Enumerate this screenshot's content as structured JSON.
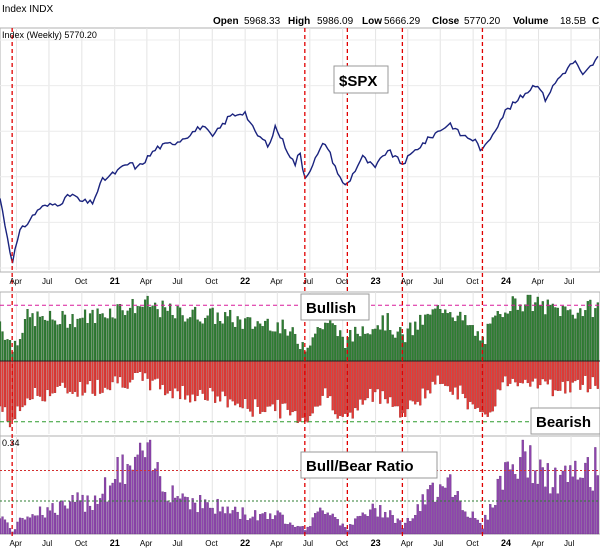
{
  "header": {
    "title": "Index INDX",
    "open_label": "Open",
    "open": "5968.33",
    "high_label": "High",
    "high": "5986.09",
    "low_label": "Low",
    "low": "5666.29",
    "close_label": "Close",
    "close": "5770.20",
    "volume_label": "Volume",
    "volume": "18.5B",
    "trailing": "C"
  },
  "price_panel": {
    "series_label": "Index (Weekly) 5770.20",
    "label": "$SPX"
  },
  "bull_panel": {
    "label": "Bullish"
  },
  "bear_panel": {
    "label": "Bearish"
  },
  "ratio_panel": {
    "label": "Bull/Bear Ratio",
    "value_label": "0.34"
  },
  "colors": {
    "price_line": "#1a237e",
    "bull": "#2e7d32",
    "bear": "#e53935",
    "ratio": "#8e44ad",
    "event_lines": "#e00000",
    "bull_ref": "#d81b9b",
    "bear_ref": "#2e9c2e"
  },
  "chart_data": {
    "type": "line",
    "interval": "weekly",
    "x_range": [
      "2020-02-15",
      "2024-09-20"
    ],
    "x_ticks": [
      {
        "date": "2020-04-01",
        "label": "Apr",
        "bold": false
      },
      {
        "date": "2020-07-01",
        "label": "Jul",
        "bold": false
      },
      {
        "date": "2020-10-01",
        "label": "Oct",
        "bold": false
      },
      {
        "date": "2021-01-01",
        "label": "21",
        "bold": true
      },
      {
        "date": "2021-04-01",
        "label": "Apr",
        "bold": false
      },
      {
        "date": "2021-07-01",
        "label": "Jul",
        "bold": false
      },
      {
        "date": "2021-10-01",
        "label": "Oct",
        "bold": false
      },
      {
        "date": "2022-01-01",
        "label": "22",
        "bold": true
      },
      {
        "date": "2022-04-01",
        "label": "Apr",
        "bold": false
      },
      {
        "date": "2022-07-01",
        "label": "Jul",
        "bold": false
      },
      {
        "date": "2022-10-01",
        "label": "Oct",
        "bold": false
      },
      {
        "date": "2023-01-01",
        "label": "23",
        "bold": true
      },
      {
        "date": "2023-04-01",
        "label": "Apr",
        "bold": false
      },
      {
        "date": "2023-07-01",
        "label": "Jul",
        "bold": false
      },
      {
        "date": "2023-10-01",
        "label": "Oct",
        "bold": false
      },
      {
        "date": "2024-01-01",
        "label": "24",
        "bold": true
      },
      {
        "date": "2024-04-01",
        "label": "Apr",
        "bold": false
      },
      {
        "date": "2024-07-01",
        "label": "Jul",
        "bold": false
      }
    ],
    "event_dates": [
      "2020-03-20",
      "2022-06-17",
      "2022-10-14",
      "2023-03-17",
      "2023-10-27"
    ],
    "price_series": {
      "name": "Index (Weekly) 5770.20",
      "ylim": [
        2200,
        5950
      ],
      "points": [
        [
          "2020-02-15",
          3350
        ],
        [
          "2020-02-28",
          2950
        ],
        [
          "2020-03-20",
          2300
        ],
        [
          "2020-04-10",
          2790
        ],
        [
          "2020-06-05",
          3190
        ],
        [
          "2020-07-31",
          3270
        ],
        [
          "2020-09-04",
          3420
        ],
        [
          "2020-09-25",
          3300
        ],
        [
          "2020-10-30",
          3270
        ],
        [
          "2020-11-27",
          3640
        ],
        [
          "2020-12-31",
          3760
        ],
        [
          "2021-02-12",
          3930
        ],
        [
          "2021-03-05",
          3840
        ],
        [
          "2021-04-30",
          4180
        ],
        [
          "2021-06-25",
          4280
        ],
        [
          "2021-07-30",
          4400
        ],
        [
          "2021-09-03",
          4540
        ],
        [
          "2021-10-01",
          4350
        ],
        [
          "2021-11-19",
          4700
        ],
        [
          "2021-12-31",
          4770
        ],
        [
          "2022-01-28",
          4430
        ],
        [
          "2022-03-11",
          4200
        ],
        [
          "2022-03-25",
          4540
        ],
        [
          "2022-05-20",
          3900
        ],
        [
          "2022-06-03",
          4110
        ],
        [
          "2022-06-17",
          3675
        ],
        [
          "2022-08-12",
          4280
        ],
        [
          "2022-09-30",
          3590
        ],
        [
          "2022-10-14",
          3580
        ],
        [
          "2022-11-25",
          4030
        ],
        [
          "2022-12-30",
          3840
        ],
        [
          "2023-02-03",
          4140
        ],
        [
          "2023-03-17",
          3910
        ],
        [
          "2023-04-28",
          4170
        ],
        [
          "2023-06-16",
          4410
        ],
        [
          "2023-07-28",
          4580
        ],
        [
          "2023-08-25",
          4400
        ],
        [
          "2023-10-06",
          4300
        ],
        [
          "2023-10-27",
          4120
        ],
        [
          "2023-12-29",
          4770
        ],
        [
          "2024-03-28",
          5250
        ],
        [
          "2024-04-19",
          4970
        ],
        [
          "2024-05-24",
          5300
        ],
        [
          "2024-07-12",
          5615
        ],
        [
          "2024-08-02",
          5350
        ],
        [
          "2024-09-20",
          5700
        ]
      ]
    },
    "breadth_series": {
      "bullish_ref": 0.95,
      "bearish_ref": -0.95,
      "ylim": [
        -1.0,
        1.0
      ],
      "profile": [
        [
          "2020-02-15",
          0.6,
          -0.7
        ],
        [
          "2020-03-20",
          0.2,
          -0.95
        ],
        [
          "2020-05-01",
          0.65,
          -0.55
        ],
        [
          "2020-08-01",
          0.62,
          -0.45
        ],
        [
          "2020-11-01",
          0.68,
          -0.4
        ],
        [
          "2021-01-15",
          0.8,
          -0.28
        ],
        [
          "2021-04-01",
          0.85,
          -0.3
        ],
        [
          "2021-06-15",
          0.72,
          -0.48
        ],
        [
          "2021-09-01",
          0.7,
          -0.5
        ],
        [
          "2021-11-15",
          0.65,
          -0.6
        ],
        [
          "2022-01-15",
          0.55,
          -0.72
        ],
        [
          "2022-03-15",
          0.6,
          -0.68
        ],
        [
          "2022-05-15",
          0.38,
          -0.8
        ],
        [
          "2022-06-17",
          0.25,
          -0.88
        ],
        [
          "2022-08-15",
          0.6,
          -0.5
        ],
        [
          "2022-10-14",
          0.3,
          -0.92
        ],
        [
          "2022-12-01",
          0.52,
          -0.58
        ],
        [
          "2023-02-01",
          0.6,
          -0.48
        ],
        [
          "2023-03-17",
          0.35,
          -0.85
        ],
        [
          "2023-05-01",
          0.55,
          -0.55
        ],
        [
          "2023-07-15",
          0.85,
          -0.28
        ],
        [
          "2023-09-15",
          0.55,
          -0.6
        ],
        [
          "2023-10-27",
          0.3,
          -0.92
        ],
        [
          "2024-01-01",
          0.85,
          -0.3
        ],
        [
          "2024-03-01",
          0.9,
          -0.25
        ],
        [
          "2024-05-01",
          0.8,
          -0.4
        ],
        [
          "2024-07-15",
          0.75,
          -0.38
        ],
        [
          "2024-09-20",
          0.82,
          -0.3
        ]
      ]
    },
    "ratio_series": {
      "ylim": [
        0,
        4
      ],
      "upper_ref": 2.7,
      "lower_ref": 0.34,
      "profile": [
        [
          "2020-02-15",
          0.9
        ],
        [
          "2020-03-20",
          0.1
        ],
        [
          "2020-05-01",
          0.9
        ],
        [
          "2020-08-01",
          1.1
        ],
        [
          "2020-11-01",
          1.5
        ],
        [
          "2021-01-15",
          2.6
        ],
        [
          "2021-04-01",
          3.2
        ],
        [
          "2021-06-15",
          1.8
        ],
        [
          "2021-09-01",
          1.3
        ],
        [
          "2021-11-15",
          1.0
        ],
        [
          "2022-01-15",
          0.8
        ],
        [
          "2022-03-15",
          0.9
        ],
        [
          "2022-05-15",
          0.5
        ],
        [
          "2022-06-17",
          0.2
        ],
        [
          "2022-08-15",
          1.2
        ],
        [
          "2022-10-14",
          0.2
        ],
        [
          "2022-12-01",
          0.9
        ],
        [
          "2023-02-01",
          1.1
        ],
        [
          "2023-03-17",
          0.35
        ],
        [
          "2023-05-01",
          1.0
        ],
        [
          "2023-07-15",
          2.6
        ],
        [
          "2023-09-15",
          1.0
        ],
        [
          "2023-10-27",
          0.3
        ],
        [
          "2024-01-01",
          2.8
        ],
        [
          "2024-03-01",
          3.2
        ],
        [
          "2024-05-01",
          2.2
        ],
        [
          "2024-07-15",
          2.4
        ],
        [
          "2024-09-20",
          2.9
        ]
      ]
    }
  }
}
